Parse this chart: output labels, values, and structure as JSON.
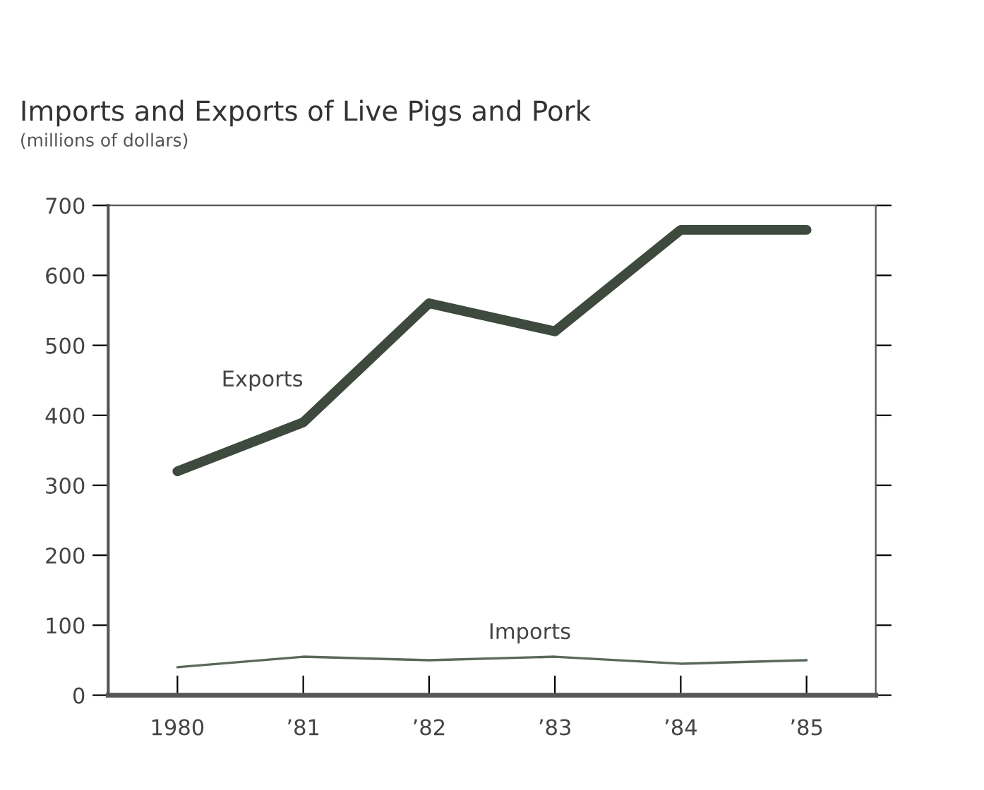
{
  "chart_data": {
    "type": "line",
    "title": "Imports and Exports of Live Pigs and Pork",
    "subtitle": "(millions of dollars)",
    "categories": [
      "1980",
      "’81",
      "’82",
      "’83",
      "’84",
      "’85"
    ],
    "series": [
      {
        "name": "Exports",
        "color": "#3d4a3d",
        "values": [
          320,
          390,
          560,
          520,
          665,
          665
        ]
      },
      {
        "name": "Imports",
        "color": "#5a6a5a",
        "values": [
          40,
          55,
          50,
          55,
          45,
          50
        ]
      }
    ],
    "ylim": [
      0,
      700
    ],
    "yticks": [
      0,
      100,
      200,
      300,
      400,
      500,
      600,
      700
    ],
    "grid": false,
    "legend": false,
    "marker": "none",
    "line_style": "solid"
  }
}
